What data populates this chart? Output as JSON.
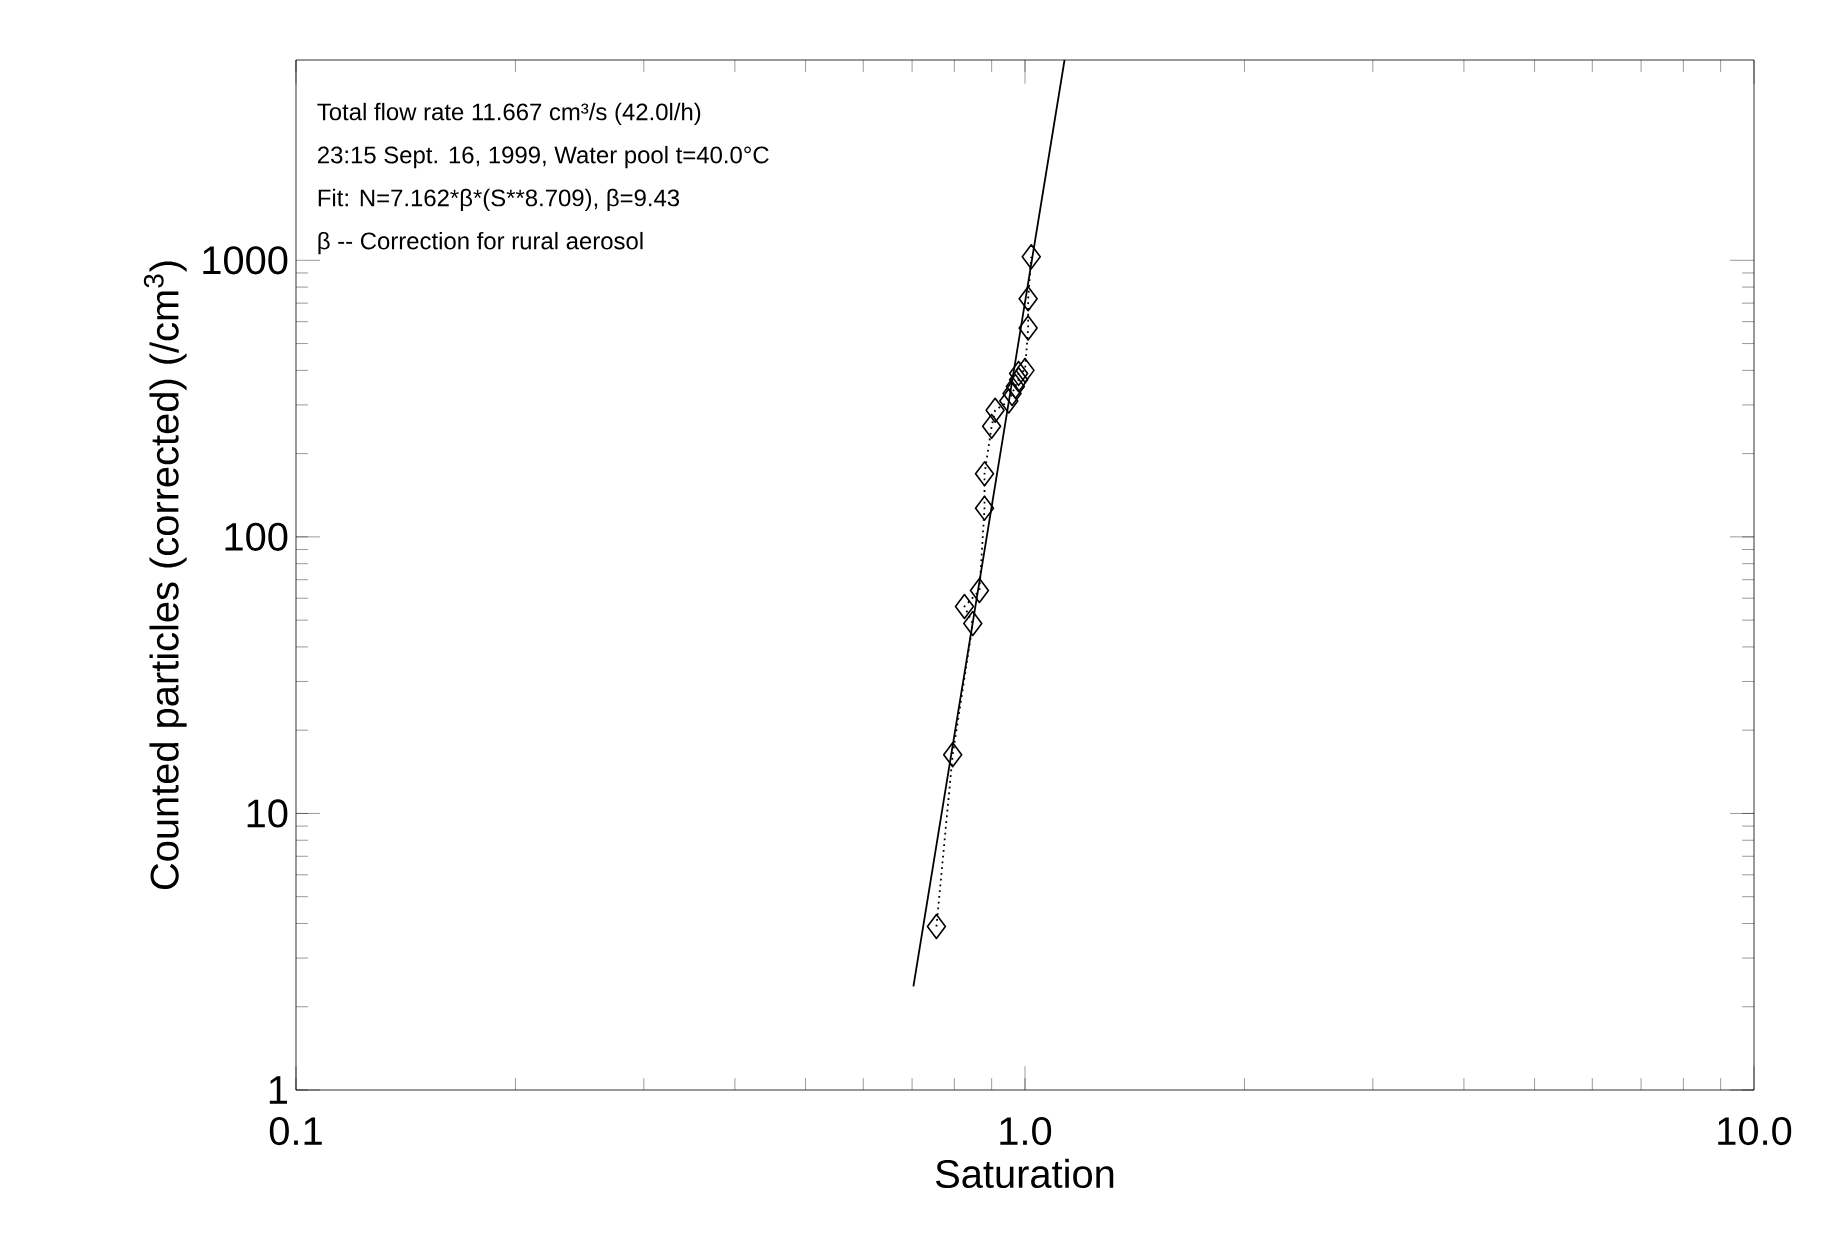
{
  "chart_data": {
    "type": "line",
    "xlabel": "Saturation",
    "ylabel": "Counted particles (corrected) (/cm$^{3}$)",
    "annotations": [
      "Total flow rate 11.667 cm³/s (42.0l/h)",
      "23:15 Sept. 16, 1999, Water pool t=40.0°C",
      "Fit: N=7.162*β*(S**8.709), β=9.43",
      "β -- Correction for rural aerosol"
    ],
    "log": "xy",
    "xlim": [
      0.1,
      10
    ],
    "ylim": [
      1,
      5300
    ],
    "xticks": [
      {
        "value": 0.1,
        "label": "0.1"
      },
      {
        "value": 1,
        "label": "1.0"
      },
      {
        "value": 10,
        "label": "10.0"
      }
    ],
    "yticks": [
      1,
      10,
      100,
      1000
    ],
    "grid": false,
    "series": [
      {
        "color": "#000000",
        "marker": "diamond",
        "line_style": "dotted",
        "x": [
          0.756,
          0.796,
          0.848,
          0.826,
          0.866,
          0.88,
          0.88,
          0.9,
          0.91,
          0.95,
          0.96,
          0.97,
          0.98,
          0.98,
          1.0,
          1.01,
          1.01,
          1.02
        ],
        "values": [
          3.9,
          16.3,
          48.6,
          56,
          64,
          127,
          169,
          251,
          287,
          310,
          330,
          350,
          370,
          390,
          400,
          569,
          726,
          1030
        ]
      },
      {
        "color": "#000000",
        "marker": "none",
        "line_style": "solid",
        "x": [
          0.703,
          1.133
        ],
        "values": [
          2.37,
          5300
        ]
      }
    ]
  }
}
